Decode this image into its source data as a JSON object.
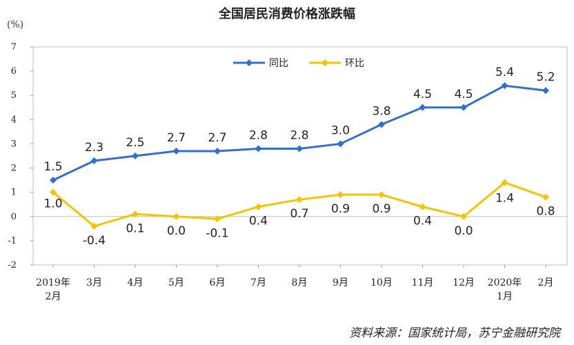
{
  "chart_data": {
    "type": "line",
    "title": "全国居民消费价格涨跌幅",
    "unit": "(%)",
    "categories": [
      [
        "2019年",
        "2月"
      ],
      [
        "3月"
      ],
      [
        "4月"
      ],
      [
        "5月"
      ],
      [
        "6月"
      ],
      [
        "7月"
      ],
      [
        "8月"
      ],
      [
        "9月"
      ],
      [
        "10月"
      ],
      [
        "11月"
      ],
      [
        "12月"
      ],
      [
        "2020年",
        "1月"
      ],
      [
        "2月"
      ]
    ],
    "ylim": [
      -2,
      7
    ],
    "yticks": [
      7,
      6,
      5,
      4,
      3,
      2,
      1,
      0,
      -1,
      -2
    ],
    "grid": false,
    "legend_position": "top-center",
    "series": [
      {
        "name": "同比",
        "color": "#2e6fd0",
        "values": [
          1.5,
          2.3,
          2.5,
          2.7,
          2.7,
          2.8,
          2.8,
          3.0,
          3.8,
          4.5,
          4.5,
          5.4,
          5.2
        ],
        "labels": [
          "1.5",
          "2.3",
          "2.5",
          "2.7",
          "2.7",
          "2.8",
          "2.8",
          "3.0",
          "3.8",
          "4.5",
          "4.5",
          "5.4",
          "5.2"
        ]
      },
      {
        "name": "环比",
        "color": "#f5c400",
        "values": [
          1.0,
          -0.4,
          0.1,
          0.0,
          -0.1,
          0.4,
          0.7,
          0.9,
          0.9,
          0.4,
          0.0,
          1.4,
          0.8
        ],
        "labels": [
          "1.0",
          "-0.4",
          "0.1",
          "0.0",
          "-0.1",
          "0.4",
          "0.7",
          "0.9",
          "0.9",
          "0.4",
          "0.0",
          "1.4",
          "0.8"
        ]
      }
    ]
  },
  "source_note": "资料来源：国家统计局，苏宁金融研究院"
}
